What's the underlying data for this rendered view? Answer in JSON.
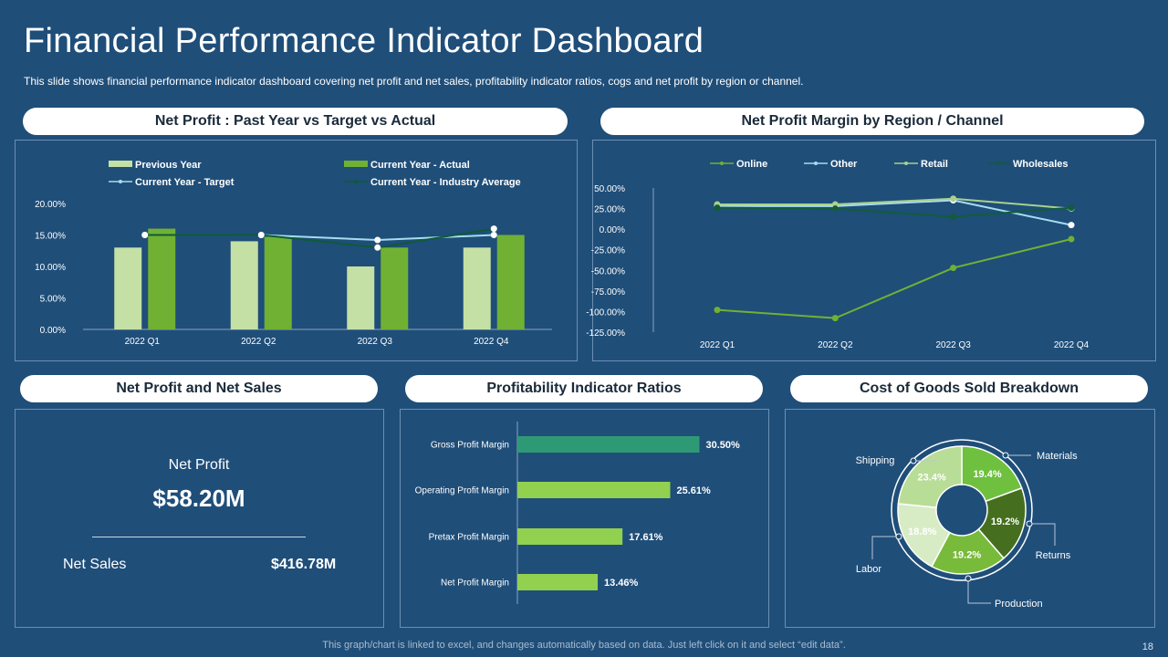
{
  "header": {
    "title": "Financial Performance Indicator Dashboard",
    "subtitle": "This slide shows financial performance  indicator dashboard  covering net profit  and net sales, profitability indicator ratios, cogs and net profit by region or channel."
  },
  "footer": {
    "note": "This graph/chart is linked to excel,  and changes automatically based on data. Just left click on it and select “edit data”.",
    "page_number": "18"
  },
  "colors": {
    "background": "#1f4e79",
    "light_green": "#c5e0a5",
    "green": "#70b134",
    "teal_bar": "#2e9a75",
    "bar_green": "#92d050"
  },
  "panels": {
    "net_profit_chart_title": "Net Profit : Past Year vs Target vs Actual",
    "margin_chart_title": "Net Profit Margin by Region / Channel",
    "net_profit_sales_title": "Net Profit and Net Sales",
    "ratios_title": "Profitability  Indicator Ratios",
    "cogs_title": "Cost of Goods Sold Breakdown"
  },
  "kpi": {
    "net_profit_label": "Net Profit",
    "net_profit_value": "$58.20M",
    "net_sales_label": "Net Sales",
    "net_sales_value": "$416.78M"
  },
  "chart_data": [
    {
      "id": "net_profit",
      "type": "bar",
      "title": "Net Profit : Past Year vs Target vs Actual",
      "categories": [
        "2022 Q1",
        "2022 Q2",
        "2022 Q3",
        "2022 Q4"
      ],
      "ylim": [
        0,
        20
      ],
      "yticks": [
        "0.00%",
        "5.00%",
        "10.00%",
        "15.00%",
        "20.00%"
      ],
      "tick_values": [
        0,
        5,
        10,
        15,
        20
      ],
      "series": [
        {
          "name": "Previous Year",
          "kind": "bar",
          "color": "#c5e0a5",
          "values": [
            13,
            14,
            10,
            13
          ]
        },
        {
          "name": "Current Year - Actual",
          "kind": "bar",
          "color": "#70b134",
          "values": [
            16,
            14.7,
            13,
            15
          ]
        },
        {
          "name": "Current Year - Target",
          "kind": "line",
          "color": "#a6dcef",
          "values": [
            15,
            15,
            14.2,
            15
          ]
        },
        {
          "name": "Current Year - Industry Average",
          "kind": "line",
          "color": "#0f5a36",
          "values": [
            15,
            15,
            13,
            16
          ]
        }
      ]
    },
    {
      "id": "margin_by_region",
      "type": "line",
      "title": "Net Profit Margin by Region / Channel",
      "categories": [
        "2022 Q1",
        "2022 Q2",
        "2022 Q3",
        "2022 Q4"
      ],
      "ylim": [
        -125,
        50
      ],
      "yticks": [
        "50.00%",
        "25.00%",
        "0.00%",
        "-25.00%",
        "-50.00%",
        "-75.00%",
        "-100.00%",
        "-125.00%"
      ],
      "tick_values": [
        50,
        25,
        0,
        -25,
        -50,
        -75,
        -100,
        -125
      ],
      "series": [
        {
          "name": "Online",
          "color": "#70b134",
          "values": [
            -98,
            -108,
            -47,
            -12
          ]
        },
        {
          "name": "Other",
          "color": "#a6dcef",
          "values": [
            28,
            28,
            35,
            5
          ]
        },
        {
          "name": "Retail",
          "color": "#a9d18e",
          "values": [
            30,
            30,
            37,
            25
          ]
        },
        {
          "name": "Wholesales",
          "color": "#125c3a",
          "values": [
            26,
            25,
            15,
            26
          ]
        }
      ]
    },
    {
      "id": "ratios",
      "type": "bar",
      "orientation": "horizontal",
      "title": "Profitability  Indicator Ratios",
      "xlim": [
        0,
        40
      ],
      "categories": [
        "Gross Profit Margin",
        "Operating Profit Margin",
        "Pretax Profit Margin",
        "Net Profit Margin"
      ],
      "values": [
        30.5,
        25.61,
        17.61,
        13.46
      ],
      "labels": [
        "30.50%",
        "25.61%",
        "17.61%",
        "13.46%"
      ],
      "colors": [
        "#2e9a75",
        "#92d050",
        "#92d050",
        "#92d050"
      ]
    },
    {
      "id": "cogs",
      "type": "pie",
      "title": "Cost of Goods Sold Breakdown",
      "categories": [
        "Materials",
        "Returns",
        "Production",
        "Labor",
        "Shipping"
      ],
      "values": [
        19.4,
        19.2,
        19.2,
        18.8,
        23.4
      ],
      "labels": [
        "19.4%",
        "19.2%",
        "19.2%",
        "18.8%",
        "23.4%"
      ],
      "colors": [
        "#6fc03f",
        "#456f1f",
        "#78bb3a",
        "#d7ecc4",
        "#b8dd96"
      ]
    }
  ]
}
